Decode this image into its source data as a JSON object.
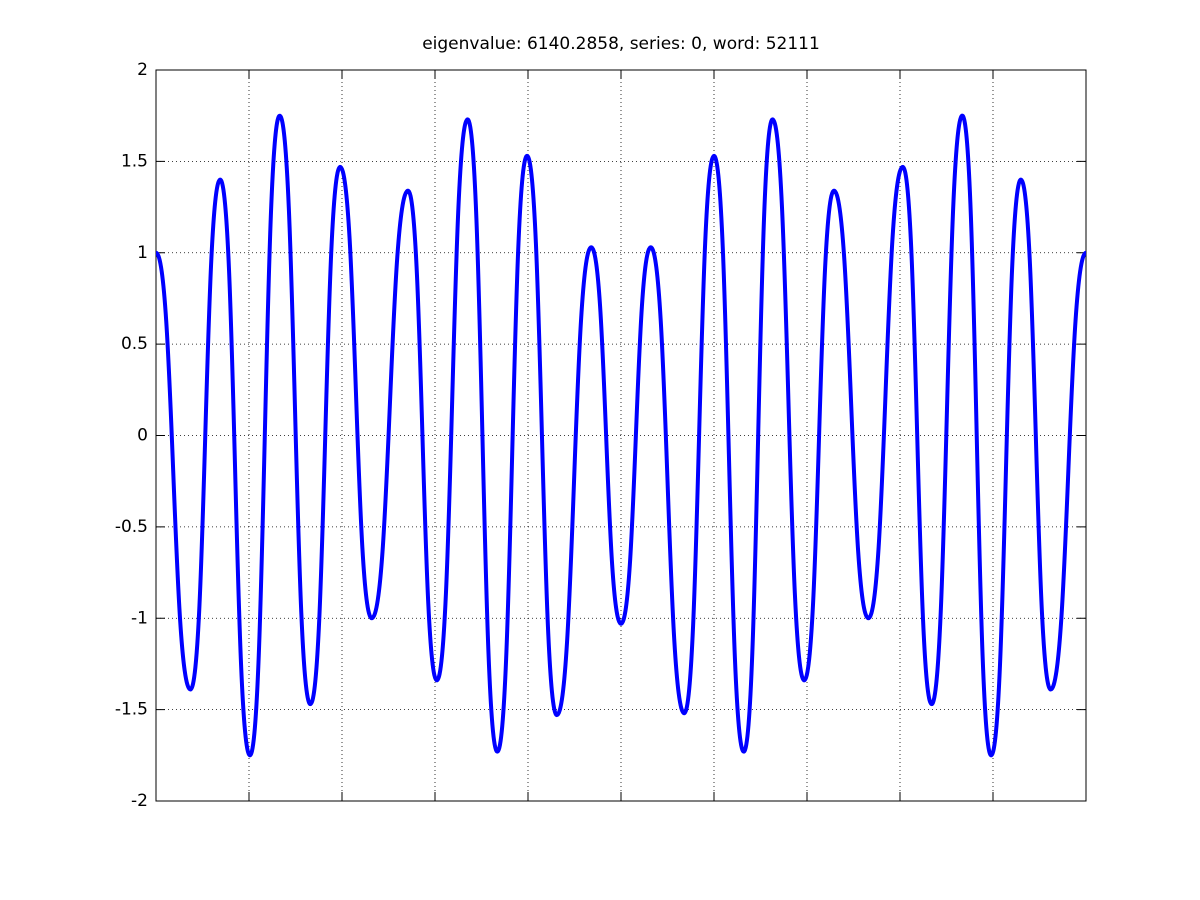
{
  "chart_data": {
    "type": "line",
    "title": "eigenvalue: 6140.2858, series: 0, word: 52111",
    "x": [
      0,
      0.37,
      0.69,
      1.01,
      1.33,
      1.66,
      1.98,
      2.32,
      2.71,
      3.02,
      3.35,
      3.67,
      3.99,
      4.31,
      4.68,
      5.0,
      5.32,
      5.68,
      6.0,
      6.32,
      6.63,
      6.97,
      7.29,
      7.66,
      8.03,
      8.34,
      8.67,
      8.98,
      9.3,
      9.62,
      10
    ],
    "series": [
      {
        "color": "#0000ff",
        "values": [
          1.0,
          -1.39,
          1.4,
          -1.75,
          1.75,
          -1.47,
          1.47,
          -1.0,
          1.34,
          -1.34,
          1.73,
          -1.73,
          1.53,
          -1.53,
          1.03,
          -1.03,
          1.03,
          -1.52,
          1.53,
          -1.73,
          1.73,
          -1.34,
          1.34,
          -1.0,
          1.47,
          -1.47,
          1.75,
          -1.75,
          1.4,
          -1.39,
          1.0
        ]
      }
    ],
    "xlim": [
      0,
      10
    ],
    "xticks": [
      0,
      1,
      2,
      3,
      4,
      5,
      6,
      7,
      8,
      9,
      10
    ],
    "xtick_labels": false,
    "ylim": [
      -2,
      2
    ],
    "yticks": [
      -2,
      -1.5,
      -1,
      -0.5,
      0,
      0.5,
      1,
      1.5,
      2
    ],
    "grid": true
  }
}
